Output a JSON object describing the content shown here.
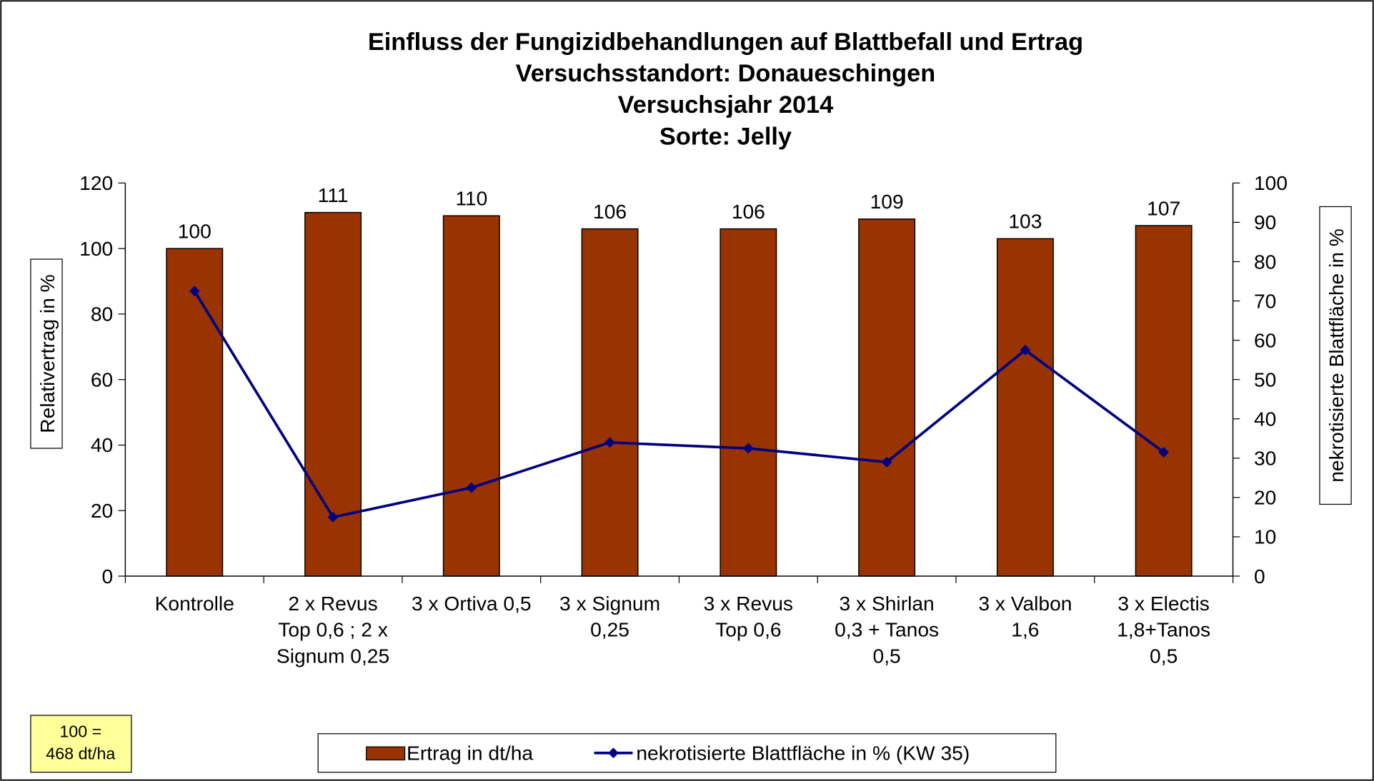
{
  "chart_data": {
    "type": "bar",
    "title": [
      "Einfluss der Fungizidbehandlungen auf Blattbefall und Ertrag",
      "Versuchsstandort: Donaueschingen",
      "Versuchsjahr 2014",
      "Sorte: Jelly"
    ],
    "y_label": "Relativertrag in %",
    "y2_label": "nekrotisierte Blattfläche in %",
    "categories": [
      [
        "Kontrolle"
      ],
      [
        "2 x Revus",
        "Top 0,6 ; 2 x",
        "Signum 0,25"
      ],
      [
        "3 x Ortiva 0,5"
      ],
      [
        "3 x Signum",
        "0,25"
      ],
      [
        "3 x Revus",
        "Top 0,6"
      ],
      [
        "3 x Shirlan",
        "0,3 + Tanos",
        "0,5"
      ],
      [
        "3 x Valbon",
        "1,6"
      ],
      [
        "3 x Electis",
        "1,8+Tanos",
        "0,5"
      ]
    ],
    "series": [
      {
        "name": "Ertrag in dt/ha",
        "type": "bar",
        "color": "#993300",
        "values": [
          100,
          111,
          110,
          106,
          106,
          109,
          103,
          107
        ]
      },
      {
        "name": "nekrotisierte Blattfläche in % (KW 35)",
        "type": "line",
        "axis": "y2",
        "color": "#000080",
        "values": [
          72.5,
          15,
          22.5,
          34,
          32.5,
          29,
          57.5,
          31.5
        ]
      }
    ],
    "ylim": [
      0,
      120
    ],
    "yticks": [
      0,
      20,
      40,
      60,
      80,
      100,
      120
    ],
    "y2lim": [
      0,
      100
    ],
    "y2ticks": [
      0,
      10,
      20,
      30,
      40,
      50,
      60,
      70,
      80,
      90,
      100
    ],
    "annotation": [
      "100 =",
      "468 dt/ha"
    ]
  }
}
